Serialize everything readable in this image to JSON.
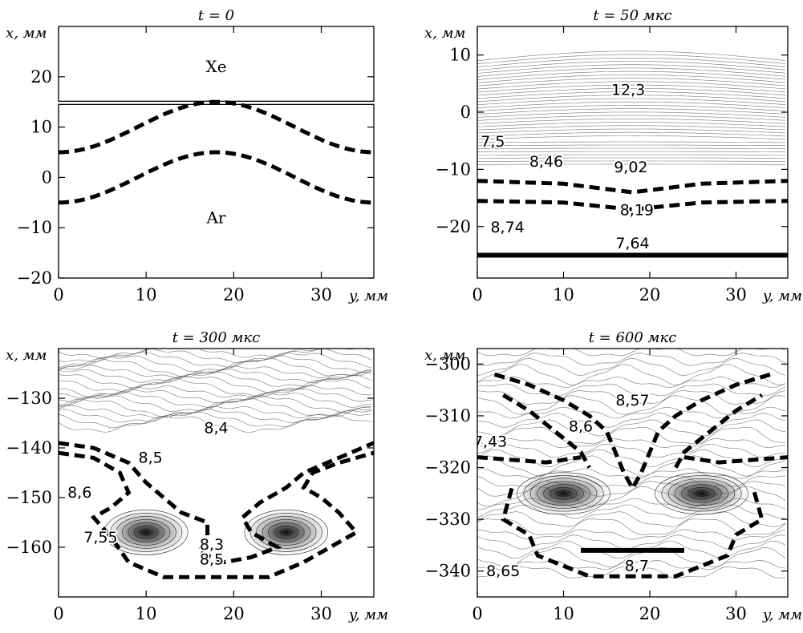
{
  "chart_data": [
    {
      "type": "line",
      "title": "t = 0",
      "xlabel": "y, мм",
      "ylabel": "x, мм",
      "xlim": [
        0,
        36
      ],
      "ylim": [
        -20,
        30
      ],
      "xticks": [
        0,
        10,
        20,
        30
      ],
      "yticks": [
        -20,
        -10,
        0,
        10,
        20
      ],
      "xtick_labels": [
        "0",
        "10",
        "20",
        "30"
      ],
      "ytick_labels": [
        "−20",
        "−10",
        "0",
        "10",
        "20"
      ],
      "panel_boxes": [
        [
          14.5,
          30
        ],
        [
          -20,
          14.5
        ]
      ],
      "regions": [
        {
          "label": "Xe",
          "x": 18,
          "y": 22
        },
        {
          "label": "Ar",
          "x": 18,
          "y": -8
        }
      ],
      "series": [
        {
          "style": "dashed",
          "base": 10,
          "amplitude": 5,
          "period": 36,
          "peak_at": 18
        },
        {
          "style": "dashed",
          "base": 0,
          "amplitude": 5,
          "period": 36,
          "peak_at": 18
        }
      ]
    },
    {
      "type": "line",
      "title": "t = 50 мкс",
      "xlabel": "y, мм",
      "ylabel": "x, мм",
      "xlim": [
        0,
        36
      ],
      "ylim": [
        -29,
        15
      ],
      "xticks": [
        0,
        10,
        20,
        30
      ],
      "yticks": [
        -20,
        -10,
        0,
        10
      ],
      "xtick_labels": [
        "0",
        "10",
        "20",
        "30"
      ],
      "ytick_labels": [
        "−20",
        "−10",
        "0",
        "10"
      ],
      "contour_labels": [
        {
          "text": "12,3",
          "x": 17.5,
          "y": 3
        },
        {
          "text": "7,5",
          "x": 1.8,
          "y": -6
        },
        {
          "text": "8,46",
          "x": 8,
          "y": -9.5
        },
        {
          "text": "9,02",
          "x": 17.8,
          "y": -10.5
        },
        {
          "text": "8,19",
          "x": 18.5,
          "y": -18
        },
        {
          "text": "8,74",
          "x": 3.5,
          "y": -21
        },
        {
          "text": "7,64",
          "x": 18,
          "y": -23.8
        }
      ],
      "series": [
        {
          "style": "dashed",
          "points": [
            [
              0,
              -12
            ],
            [
              10,
              -12.5
            ],
            [
              18,
              -14
            ],
            [
              26,
              -12.5
            ],
            [
              36,
              -12
            ]
          ]
        },
        {
          "style": "dashed",
          "points": [
            [
              0,
              -15.5
            ],
            [
              10,
              -15.8
            ],
            [
              18,
              -17
            ],
            [
              26,
              -15.8
            ],
            [
              36,
              -15.5
            ]
          ]
        },
        {
          "style": "solid-thick",
          "points": [
            [
              0,
              -25
            ],
            [
              36,
              -25
            ]
          ]
        }
      ]
    },
    {
      "type": "line",
      "title": "t = 300 мкс",
      "xlabel": "y, мм",
      "ylabel": "x, мм",
      "xlim": [
        0,
        36
      ],
      "ylim": [
        -170,
        -120
      ],
      "xticks": [
        0,
        10,
        20,
        30
      ],
      "yticks": [
        -160,
        -150,
        -140,
        -130
      ],
      "xtick_labels": [
        "0",
        "10",
        "20",
        "30"
      ],
      "ytick_labels": [
        "−160",
        "−150",
        "−140",
        "−130"
      ],
      "contour_labels": [
        {
          "text": "8,4",
          "x": 18,
          "y": -137
        },
        {
          "text": "8,5",
          "x": 10.5,
          "y": -143
        },
        {
          "text": "8,6",
          "x": 2.4,
          "y": -150
        },
        {
          "text": "7,55",
          "x": 4.8,
          "y": -159
        },
        {
          "text": "8,3",
          "x": 17.5,
          "y": -160.5
        },
        {
          "text": "8,5",
          "x": 17.5,
          "y": -163.5
        }
      ],
      "vortices": [
        {
          "x": 10,
          "y": -157
        },
        {
          "x": 26,
          "y": -157
        }
      ],
      "series": [
        {
          "style": "dashed",
          "points": [
            [
              0,
              -139
            ],
            [
              4,
              -140
            ],
            [
              8,
              -143
            ],
            [
              10,
              -147
            ],
            [
              12,
              -150
            ],
            [
              14,
              -153
            ],
            [
              17,
              -155
            ],
            [
              17,
              -158
            ],
            [
              16,
              -161
            ],
            [
              19,
              -163
            ],
            [
              22,
              -162
            ],
            [
              25,
              -160
            ],
            [
              22,
              -157
            ],
            [
              21,
              -154
            ],
            [
              23,
              -151
            ],
            [
              26,
              -148
            ],
            [
              28,
              -145
            ],
            [
              32,
              -142
            ],
            [
              36,
              -139
            ]
          ]
        },
        {
          "style": "dashed",
          "points": [
            [
              0,
              -141
            ],
            [
              4,
              -142
            ],
            [
              7,
              -145
            ],
            [
              8,
              -149
            ],
            [
              6,
              -152
            ],
            [
              4,
              -154
            ],
            [
              6,
              -158
            ],
            [
              8,
              -163
            ],
            [
              12,
              -166
            ],
            [
              24,
              -166
            ],
            [
              28,
              -163
            ],
            [
              31,
              -160
            ],
            [
              34,
              -157
            ],
            [
              32,
              -153
            ],
            [
              30,
              -150
            ],
            [
              28,
              -148
            ],
            [
              29,
              -145
            ],
            [
              32,
              -143
            ],
            [
              36,
              -141
            ]
          ]
        }
      ]
    },
    {
      "type": "line",
      "title": "t = 600 мкс",
      "xlabel": "y, мм",
      "ylabel": "x, мм",
      "xlim": [
        0,
        36
      ],
      "ylim": [
        -345,
        -297
      ],
      "xticks": [
        0,
        10,
        20,
        30
      ],
      "yticks": [
        -340,
        -330,
        -320,
        -310,
        -300
      ],
      "xtick_labels": [
        "0",
        "10",
        "20",
        "30"
      ],
      "ytick_labels": [
        "−340",
        "−330",
        "−320",
        "−310",
        "−300"
      ],
      "contour_labels": [
        {
          "text": "8,57",
          "x": 18,
          "y": -308
        },
        {
          "text": "8,6",
          "x": 12,
          "y": -313
        },
        {
          "text": "7,43",
          "x": 1.5,
          "y": -316
        },
        {
          "text": "8,65",
          "x": 3,
          "y": -341
        },
        {
          "text": "8,7",
          "x": 18.5,
          "y": -340
        }
      ],
      "vortices": [
        {
          "x": 10,
          "y": -325
        },
        {
          "x": 26,
          "y": -325
        }
      ],
      "series": [
        {
          "style": "dashed",
          "points": [
            [
              2,
              -302
            ],
            [
              6,
              -304
            ],
            [
              10,
              -307
            ],
            [
              13,
              -310
            ],
            [
              15,
              -313
            ],
            [
              16,
              -317
            ],
            [
              17,
              -321
            ],
            [
              18,
              -324
            ],
            [
              19,
              -321
            ],
            [
              20,
              -317
            ],
            [
              21,
              -313
            ],
            [
              23,
              -310
            ],
            [
              26,
              -307
            ],
            [
              30,
              -304
            ],
            [
              34,
              -302
            ]
          ]
        },
        {
          "style": "dashed",
          "points": [
            [
              3,
              -306
            ],
            [
              6,
              -309
            ],
            [
              9,
              -313
            ],
            [
              12,
              -317
            ],
            [
              13,
              -320
            ]
          ]
        },
        {
          "style": "dashed",
          "points": [
            [
              23,
              -320
            ],
            [
              24,
              -317
            ],
            [
              27,
              -313
            ],
            [
              30,
              -309
            ],
            [
              33,
              -306
            ]
          ]
        },
        {
          "style": "dashed",
          "points": [
            [
              0,
              -318
            ],
            [
              8,
              -319
            ],
            [
              12,
              -318
            ]
          ]
        },
        {
          "style": "dashed",
          "points": [
            [
              24,
              -318
            ],
            [
              28,
              -319
            ],
            [
              36,
              -318
            ]
          ]
        },
        {
          "style": "dashed",
          "points": [
            [
              4,
              -324
            ],
            [
              3,
              -330
            ],
            [
              6,
              -333
            ],
            [
              7,
              -337
            ],
            [
              10,
              -339
            ],
            [
              13,
              -341
            ],
            [
              18,
              -341
            ],
            [
              23,
              -341
            ],
            [
              26,
              -339
            ],
            [
              29,
              -337
            ],
            [
              30,
              -333
            ],
            [
              33,
              -330
            ],
            [
              32,
              -324
            ]
          ]
        },
        {
          "style": "solid-thick",
          "points": [
            [
              12,
              -336
            ],
            [
              24,
              -336
            ]
          ]
        }
      ]
    }
  ]
}
